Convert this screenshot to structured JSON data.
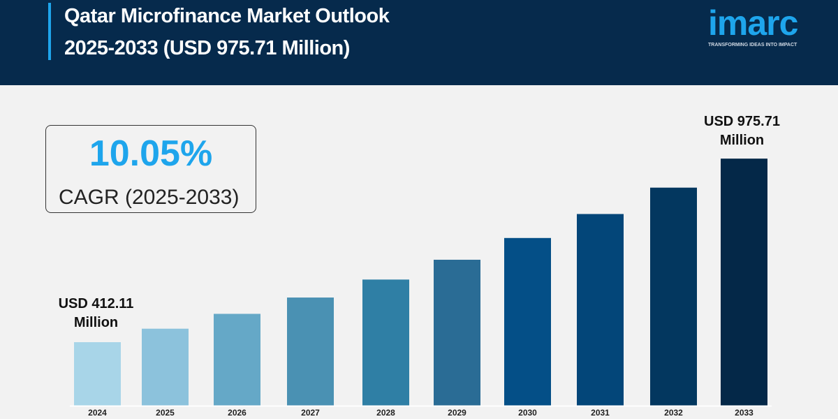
{
  "header": {
    "title_line1": "Qatar Microfinance Market Outlook",
    "title_line2": "2025-2033 (USD 975.71 Million)",
    "logo_text": "imarc",
    "logo_tagline": "TRANSFORMING IDEAS INTO IMPACT"
  },
  "cagr": {
    "value": "10.05%",
    "label": "CAGR (2025-2033)"
  },
  "colors": {
    "header_bg": "#062a4c",
    "accent": "#1ea5ec",
    "background": "#f2f2f2"
  },
  "chart_data": {
    "type": "bar",
    "title": "Qatar Microfinance Market Outlook 2025-2033 (USD 975.71 Million)",
    "categories": [
      "2024",
      "2025",
      "2026",
      "2027",
      "2028",
      "2029",
      "2030",
      "2031",
      "2032",
      "2033"
    ],
    "values": [
      412.11,
      453.5,
      499.1,
      549.2,
      604.4,
      665.2,
      732.0,
      805.6,
      886.6,
      975.71
    ],
    "unit": "USD Million",
    "ylim": [
      217,
      976
    ],
    "grid": false,
    "bar_colors": [
      "#a8d5e8",
      "#8cc2dc",
      "#65a8c7",
      "#4a91b3",
      "#2f7fa5",
      "#2a6c95",
      "#044f87",
      "#034679",
      "#03375f",
      "#042848"
    ],
    "annotations": [
      {
        "category": "2024",
        "line1": "USD 412.11",
        "line2": "Million"
      },
      {
        "category": "2033",
        "line1": "USD 975.71",
        "line2": "Million"
      }
    ]
  }
}
